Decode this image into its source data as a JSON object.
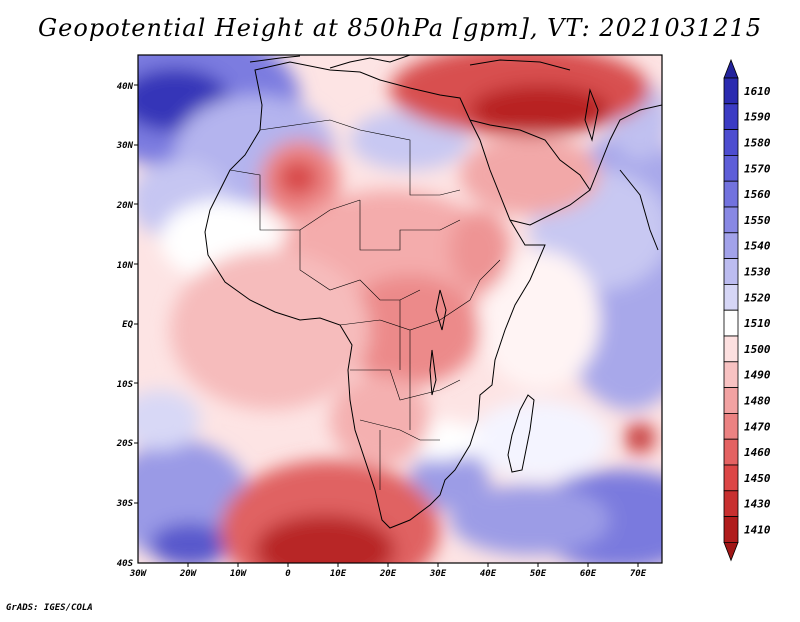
{
  "title": "Geopotential Height at 850hPa [gpm], VT: 2021031215",
  "footer": "GrADS: IGES/COLA",
  "map": {
    "variable": "Geopotential Height",
    "level": "850hPa",
    "units": "gpm",
    "valid_time": "2021031215",
    "lat_labels": [
      "40N",
      "30N",
      "20N",
      "10N",
      "EQ",
      "10S",
      "20S",
      "30S",
      "40S"
    ],
    "lon_labels": [
      "30W",
      "20W",
      "10W",
      "0",
      "10E",
      "20E",
      "30E",
      "40E",
      "50E",
      "60E",
      "70E"
    ]
  },
  "colorbar": {
    "levels": [
      "1610",
      "1590",
      "1580",
      "1570",
      "1560",
      "1550",
      "1540",
      "1530",
      "1520",
      "1510",
      "1500",
      "1490",
      "1480",
      "1470",
      "1460",
      "1450",
      "1430",
      "1410"
    ],
    "colors": [
      "#2b2bb0",
      "#3c3cc4",
      "#4d4dd0",
      "#5e5ed8",
      "#7272de",
      "#8888e4",
      "#a2a2ea",
      "#bcbcf0",
      "#d6d6f6",
      "#ffffff",
      "#fde0e0",
      "#f8c2c2",
      "#f2a2a2",
      "#ec8282",
      "#e46262",
      "#dc4646",
      "#c83030",
      "#b01c1c"
    ],
    "arrow_top_color": "#23239c",
    "arrow_bottom_color": "#a01616"
  }
}
